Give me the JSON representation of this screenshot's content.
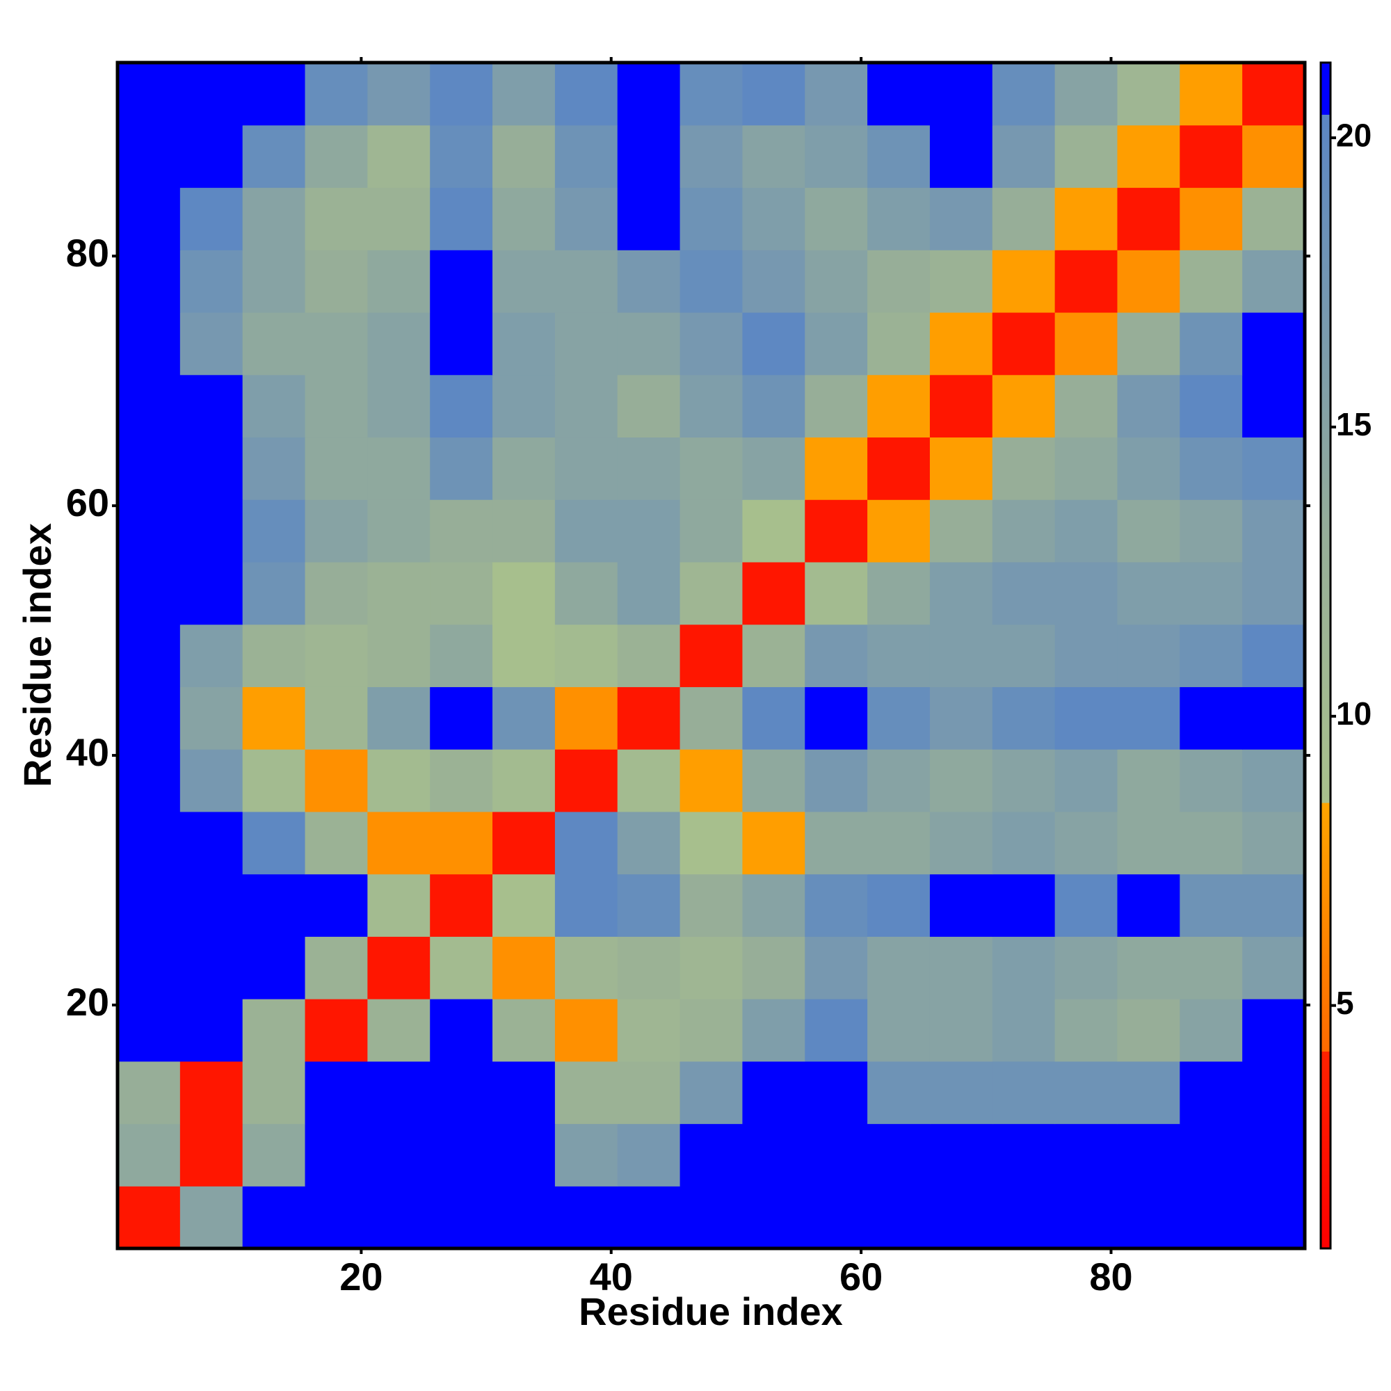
{
  "chart_data": {
    "type": "heatmap",
    "xlabel": "Residue index",
    "ylabel": "Residue index",
    "xbins": [
      0.5,
      5.5,
      10.5,
      15.5,
      20.5,
      25.5,
      30.5,
      35.5,
      40.5,
      45.5,
      50.5,
      55.5,
      60.5,
      65.5,
      70.5,
      75.5,
      80.5,
      85.5,
      90.5,
      95.5
    ],
    "ybins": [
      0.5,
      5.5,
      10.5,
      15.5,
      20.5,
      25.5,
      30.5,
      35.5,
      40.5,
      45.5,
      50.5,
      55.5,
      60.5,
      65.5,
      70.5,
      75.5,
      80.5,
      85.5,
      90.5,
      95.5
    ],
    "xlim": [
      0.5,
      95.5
    ],
    "ylim": [
      0.5,
      95.5
    ],
    "xticks": [
      20,
      40,
      60,
      80
    ],
    "yticks": [
      20,
      40,
      60,
      80
    ],
    "values": [
      [
        3,
        15,
        21,
        21,
        21,
        21,
        21,
        21,
        21,
        21,
        21,
        21,
        21,
        21,
        21,
        21,
        21,
        21,
        21
      ],
      [
        14,
        3,
        14,
        21,
        21,
        21,
        21,
        16,
        17,
        21,
        21,
        21,
        21,
        21,
        21,
        21,
        21,
        21,
        21
      ],
      [
        13,
        3,
        12,
        21,
        21,
        21,
        21,
        12,
        12,
        17,
        21,
        21,
        18,
        18,
        18,
        18,
        18,
        21,
        21
      ],
      [
        21,
        21,
        12,
        3,
        12,
        21,
        12,
        7,
        11,
        12,
        16,
        20,
        15,
        15,
        16,
        14,
        13,
        15,
        21
      ],
      [
        21,
        21,
        21,
        12,
        3,
        10,
        7,
        11,
        12,
        11,
        13,
        17,
        15,
        15,
        16,
        15,
        14,
        14,
        16
      ],
      [
        21,
        21,
        21,
        21,
        10,
        3,
        9,
        20,
        19,
        13,
        15,
        19,
        20,
        21,
        21,
        20,
        21,
        18,
        18
      ],
      [
        21,
        21,
        20,
        12,
        7,
        7,
        3,
        20,
        16,
        9,
        8,
        14,
        14,
        15,
        16,
        15,
        14,
        14,
        15
      ],
      [
        21,
        17,
        10,
        7,
        10,
        12,
        10,
        3,
        10,
        8,
        14,
        17,
        15,
        14,
        15,
        16,
        14,
        15,
        16
      ],
      [
        21,
        15,
        8,
        11,
        16,
        21,
        18,
        7,
        3,
        13,
        20,
        21,
        19,
        17,
        19,
        20,
        20,
        21,
        21
      ],
      [
        21,
        16,
        12,
        11,
        12,
        14,
        9,
        10,
        12,
        3,
        12,
        17,
        16,
        16,
        16,
        17,
        17,
        18,
        20
      ],
      [
        21,
        21,
        18,
        13,
        12,
        12,
        9,
        14,
        16,
        11,
        3,
        10,
        14,
        16,
        17,
        17,
        16,
        16,
        17
      ],
      [
        21,
        21,
        19,
        15,
        14,
        13,
        13,
        16,
        16,
        14,
        9,
        3,
        8,
        13,
        15,
        16,
        14,
        15,
        17
      ],
      [
        21,
        21,
        17,
        14,
        14,
        18,
        14,
        15,
        15,
        14,
        15,
        8,
        3,
        8,
        13,
        14,
        16,
        18,
        19
      ],
      [
        21,
        21,
        16,
        14,
        15,
        20,
        16,
        15,
        13,
        16,
        18,
        13,
        8,
        3,
        8,
        13,
        17,
        20,
        21
      ],
      [
        21,
        17,
        14,
        14,
        15,
        21,
        16,
        15,
        15,
        17,
        20,
        16,
        12,
        8,
        3,
        7,
        13,
        18,
        21
      ],
      [
        21,
        18,
        15,
        13,
        14,
        21,
        15,
        15,
        17,
        19,
        17,
        15,
        13,
        12,
        8,
        3,
        7,
        12,
        16
      ],
      [
        21,
        20,
        15,
        12,
        12,
        20,
        14,
        17,
        21,
        18,
        16,
        14,
        16,
        17,
        13,
        8,
        3,
        7,
        12
      ],
      [
        21,
        21,
        19,
        14,
        11,
        19,
        13,
        18,
        21,
        17,
        15,
        16,
        18,
        21,
        17,
        12,
        8,
        3,
        7
      ],
      [
        21,
        21,
        21,
        19,
        17,
        20,
        16,
        20,
        21,
        19,
        20,
        17,
        21,
        21,
        19,
        15,
        11,
        8,
        3
      ]
    ],
    "colorscale": [
      {
        "value": 0.8,
        "color": "#ff0000"
      },
      {
        "value": 4.2,
        "color": "#ff2200"
      },
      {
        "value": 4.2,
        "color": "#ff6a00"
      },
      {
        "value": 8.5,
        "color": "#ffa500"
      },
      {
        "value": 8.5,
        "color": "#a9c18c"
      },
      {
        "value": 13,
        "color": "#97ae98"
      },
      {
        "value": 20.4,
        "color": "#5b86c4"
      },
      {
        "value": 20.4,
        "color": "#0000ff"
      },
      {
        "value": 21.3,
        "color": "#0000ff"
      }
    ],
    "clim": [
      0.8,
      21.3
    ],
    "cticks": [
      5,
      10,
      15,
      20
    ]
  }
}
